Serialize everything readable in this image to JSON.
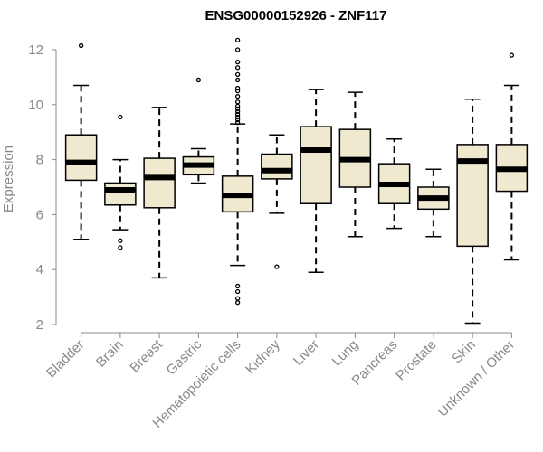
{
  "chart_data": {
    "type": "boxplot",
    "title": "ENSG00000152926 - ZNF117",
    "ylabel": "Expression",
    "xlabel": "",
    "ylim": [
      2,
      12
    ],
    "yticks": [
      2,
      4,
      6,
      8,
      10,
      12
    ],
    "grid": false,
    "legend": "none",
    "box_fill": "#efe9cf",
    "box_stroke": "#000000",
    "median_color": "#000000",
    "categories": [
      "Bladder",
      "Brain",
      "Breast",
      "Gastric",
      "Hematopoietic cells",
      "Kidney",
      "Liver",
      "Lung",
      "Pancreas",
      "Prostate",
      "Skin",
      "Unknown / Other"
    ],
    "boxes": [
      {
        "name": "Bladder",
        "whisker_low": 5.1,
        "q1": 7.25,
        "median": 7.9,
        "q3": 8.9,
        "whisker_high": 10.7,
        "outliers": [
          12.15
        ]
      },
      {
        "name": "Brain",
        "whisker_low": 5.45,
        "q1": 6.35,
        "median": 6.9,
        "q3": 7.15,
        "whisker_high": 8.0,
        "outliers": [
          9.55,
          5.05,
          4.8
        ]
      },
      {
        "name": "Breast",
        "whisker_low": 3.7,
        "q1": 6.25,
        "median": 7.35,
        "q3": 8.05,
        "whisker_high": 9.9,
        "outliers": []
      },
      {
        "name": "Gastric",
        "whisker_low": 7.15,
        "q1": 7.45,
        "median": 7.8,
        "q3": 8.1,
        "whisker_high": 8.4,
        "outliers": [
          10.9
        ]
      },
      {
        "name": "Hematopoietic cells",
        "whisker_low": 4.15,
        "q1": 6.1,
        "median": 6.7,
        "q3": 7.4,
        "whisker_high": 9.3,
        "outliers": [
          12.35,
          12.0,
          11.55,
          11.35,
          11.1,
          10.9,
          10.6,
          10.5,
          10.3,
          10.1,
          9.95,
          9.85,
          9.75,
          9.65,
          9.55,
          9.45,
          9.35,
          3.4,
          3.2,
          2.95,
          2.8
        ]
      },
      {
        "name": "Kidney",
        "whisker_low": 6.05,
        "q1": 7.3,
        "median": 7.6,
        "q3": 8.2,
        "whisker_high": 8.9,
        "outliers": [
          4.1
        ]
      },
      {
        "name": "Liver",
        "whisker_low": 3.9,
        "q1": 6.4,
        "median": 8.35,
        "q3": 9.2,
        "whisker_high": 10.55,
        "outliers": []
      },
      {
        "name": "Lung",
        "whisker_low": 5.2,
        "q1": 7.0,
        "median": 8.0,
        "q3": 9.1,
        "whisker_high": 10.45,
        "outliers": []
      },
      {
        "name": "Pancreas",
        "whisker_low": 5.5,
        "q1": 6.4,
        "median": 7.1,
        "q3": 7.85,
        "whisker_high": 8.75,
        "outliers": []
      },
      {
        "name": "Prostate",
        "whisker_low": 5.2,
        "q1": 6.2,
        "median": 6.6,
        "q3": 7.0,
        "whisker_high": 7.65,
        "outliers": []
      },
      {
        "name": "Skin",
        "whisker_low": 2.05,
        "q1": 4.85,
        "median": 7.95,
        "q3": 8.55,
        "whisker_high": 10.2,
        "outliers": []
      },
      {
        "name": "Unknown / Other",
        "whisker_low": 4.35,
        "q1": 6.85,
        "median": 7.65,
        "q3": 8.55,
        "whisker_high": 10.7,
        "outliers": [
          11.8
        ]
      }
    ]
  }
}
